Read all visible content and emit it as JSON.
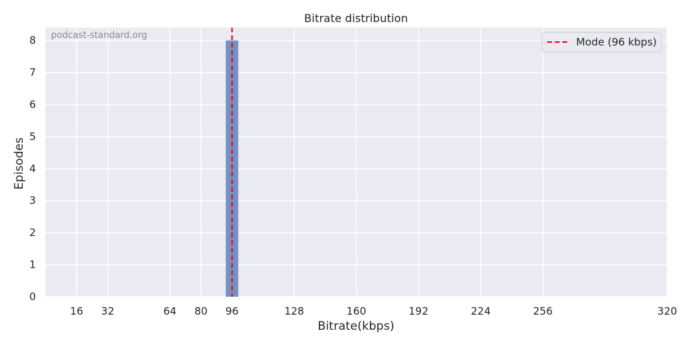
{
  "chart_data": {
    "type": "bar",
    "title": "Bitrate distribution",
    "xlabel": "Bitrate(kbps)",
    "ylabel": "Episodes",
    "watermark": "podcast-standard.org",
    "xlim": [
      0,
      320
    ],
    "ylim": [
      0,
      8.4
    ],
    "x_ticks": [
      16,
      32,
      64,
      80,
      96,
      128,
      160,
      192,
      224,
      256,
      320
    ],
    "y_ticks": [
      0,
      1,
      2,
      3,
      4,
      5,
      6,
      7,
      8
    ],
    "bars": [
      {
        "x_start": 92.8,
        "x_end": 99.2,
        "value": 8
      }
    ],
    "mode_line": {
      "x": 96,
      "label": "Mode (96 kbps)"
    },
    "grid": true,
    "legend_position": "top-right",
    "colors": {
      "background": "#eaeaf2",
      "grid": "#ffffff",
      "bar": "#7590c2",
      "mode_line": "#e8000b"
    }
  }
}
